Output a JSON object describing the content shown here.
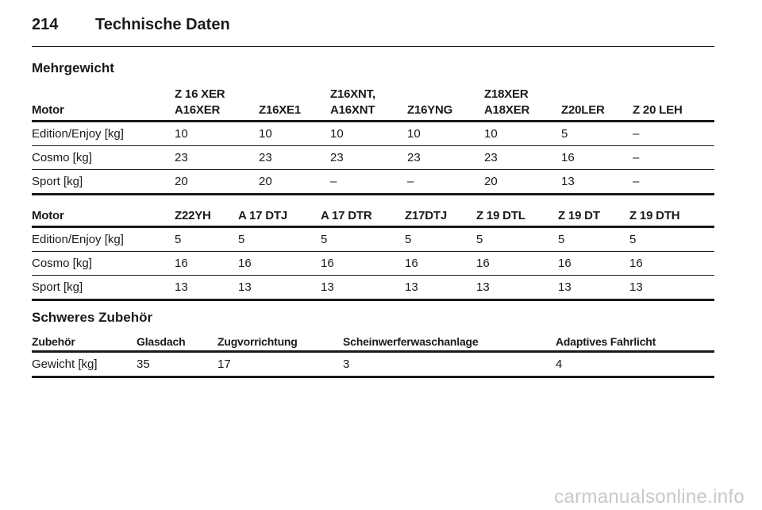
{
  "header": {
    "page_number": "214",
    "title": "Technische Daten"
  },
  "section1": {
    "heading": "Mehrgewicht"
  },
  "table1": {
    "columns": [
      [
        "",
        "Motor"
      ],
      [
        "Z 16 XER",
        "A16XER"
      ],
      [
        "",
        "Z16XE1"
      ],
      [
        "Z16XNT,",
        "A16XNT"
      ],
      [
        "",
        "Z16YNG"
      ],
      [
        "Z18XER",
        "A18XER"
      ],
      [
        "",
        "Z20LER"
      ],
      [
        "",
        "Z 20 LEH"
      ]
    ],
    "rows": [
      [
        "Edition/Enjoy [kg]",
        "10",
        "10",
        "10",
        "10",
        "10",
        "5",
        "–"
      ],
      [
        "Cosmo [kg]",
        "23",
        "23",
        "23",
        "23",
        "23",
        "16",
        "–"
      ],
      [
        "Sport [kg]",
        "20",
        "20",
        "–",
        "–",
        "20",
        "13",
        "–"
      ]
    ]
  },
  "table2": {
    "columns": [
      "Motor",
      "Z22YH",
      "A 17 DTJ",
      "A 17 DTR",
      "Z17DTJ",
      "Z 19 DTL",
      "Z 19 DT",
      "Z 19 DTH"
    ],
    "rows": [
      [
        "Edition/Enjoy [kg]",
        "5",
        "5",
        "5",
        "5",
        "5",
        "5",
        "5"
      ],
      [
        "Cosmo [kg]",
        "16",
        "16",
        "16",
        "16",
        "16",
        "16",
        "16"
      ],
      [
        "Sport [kg]",
        "13",
        "13",
        "13",
        "13",
        "13",
        "13",
        "13"
      ]
    ]
  },
  "section2": {
    "heading": "Schweres Zubehör"
  },
  "table3": {
    "columns": [
      "Zubehör",
      "Glasdach",
      "Zugvorrichtung",
      "Scheinwerferwaschanlage",
      "Adaptives Fahrlicht"
    ],
    "rows": [
      [
        "Gewicht [kg]",
        "35",
        "17",
        "3",
        "4"
      ]
    ]
  },
  "watermark": "carmanualsonline.info"
}
